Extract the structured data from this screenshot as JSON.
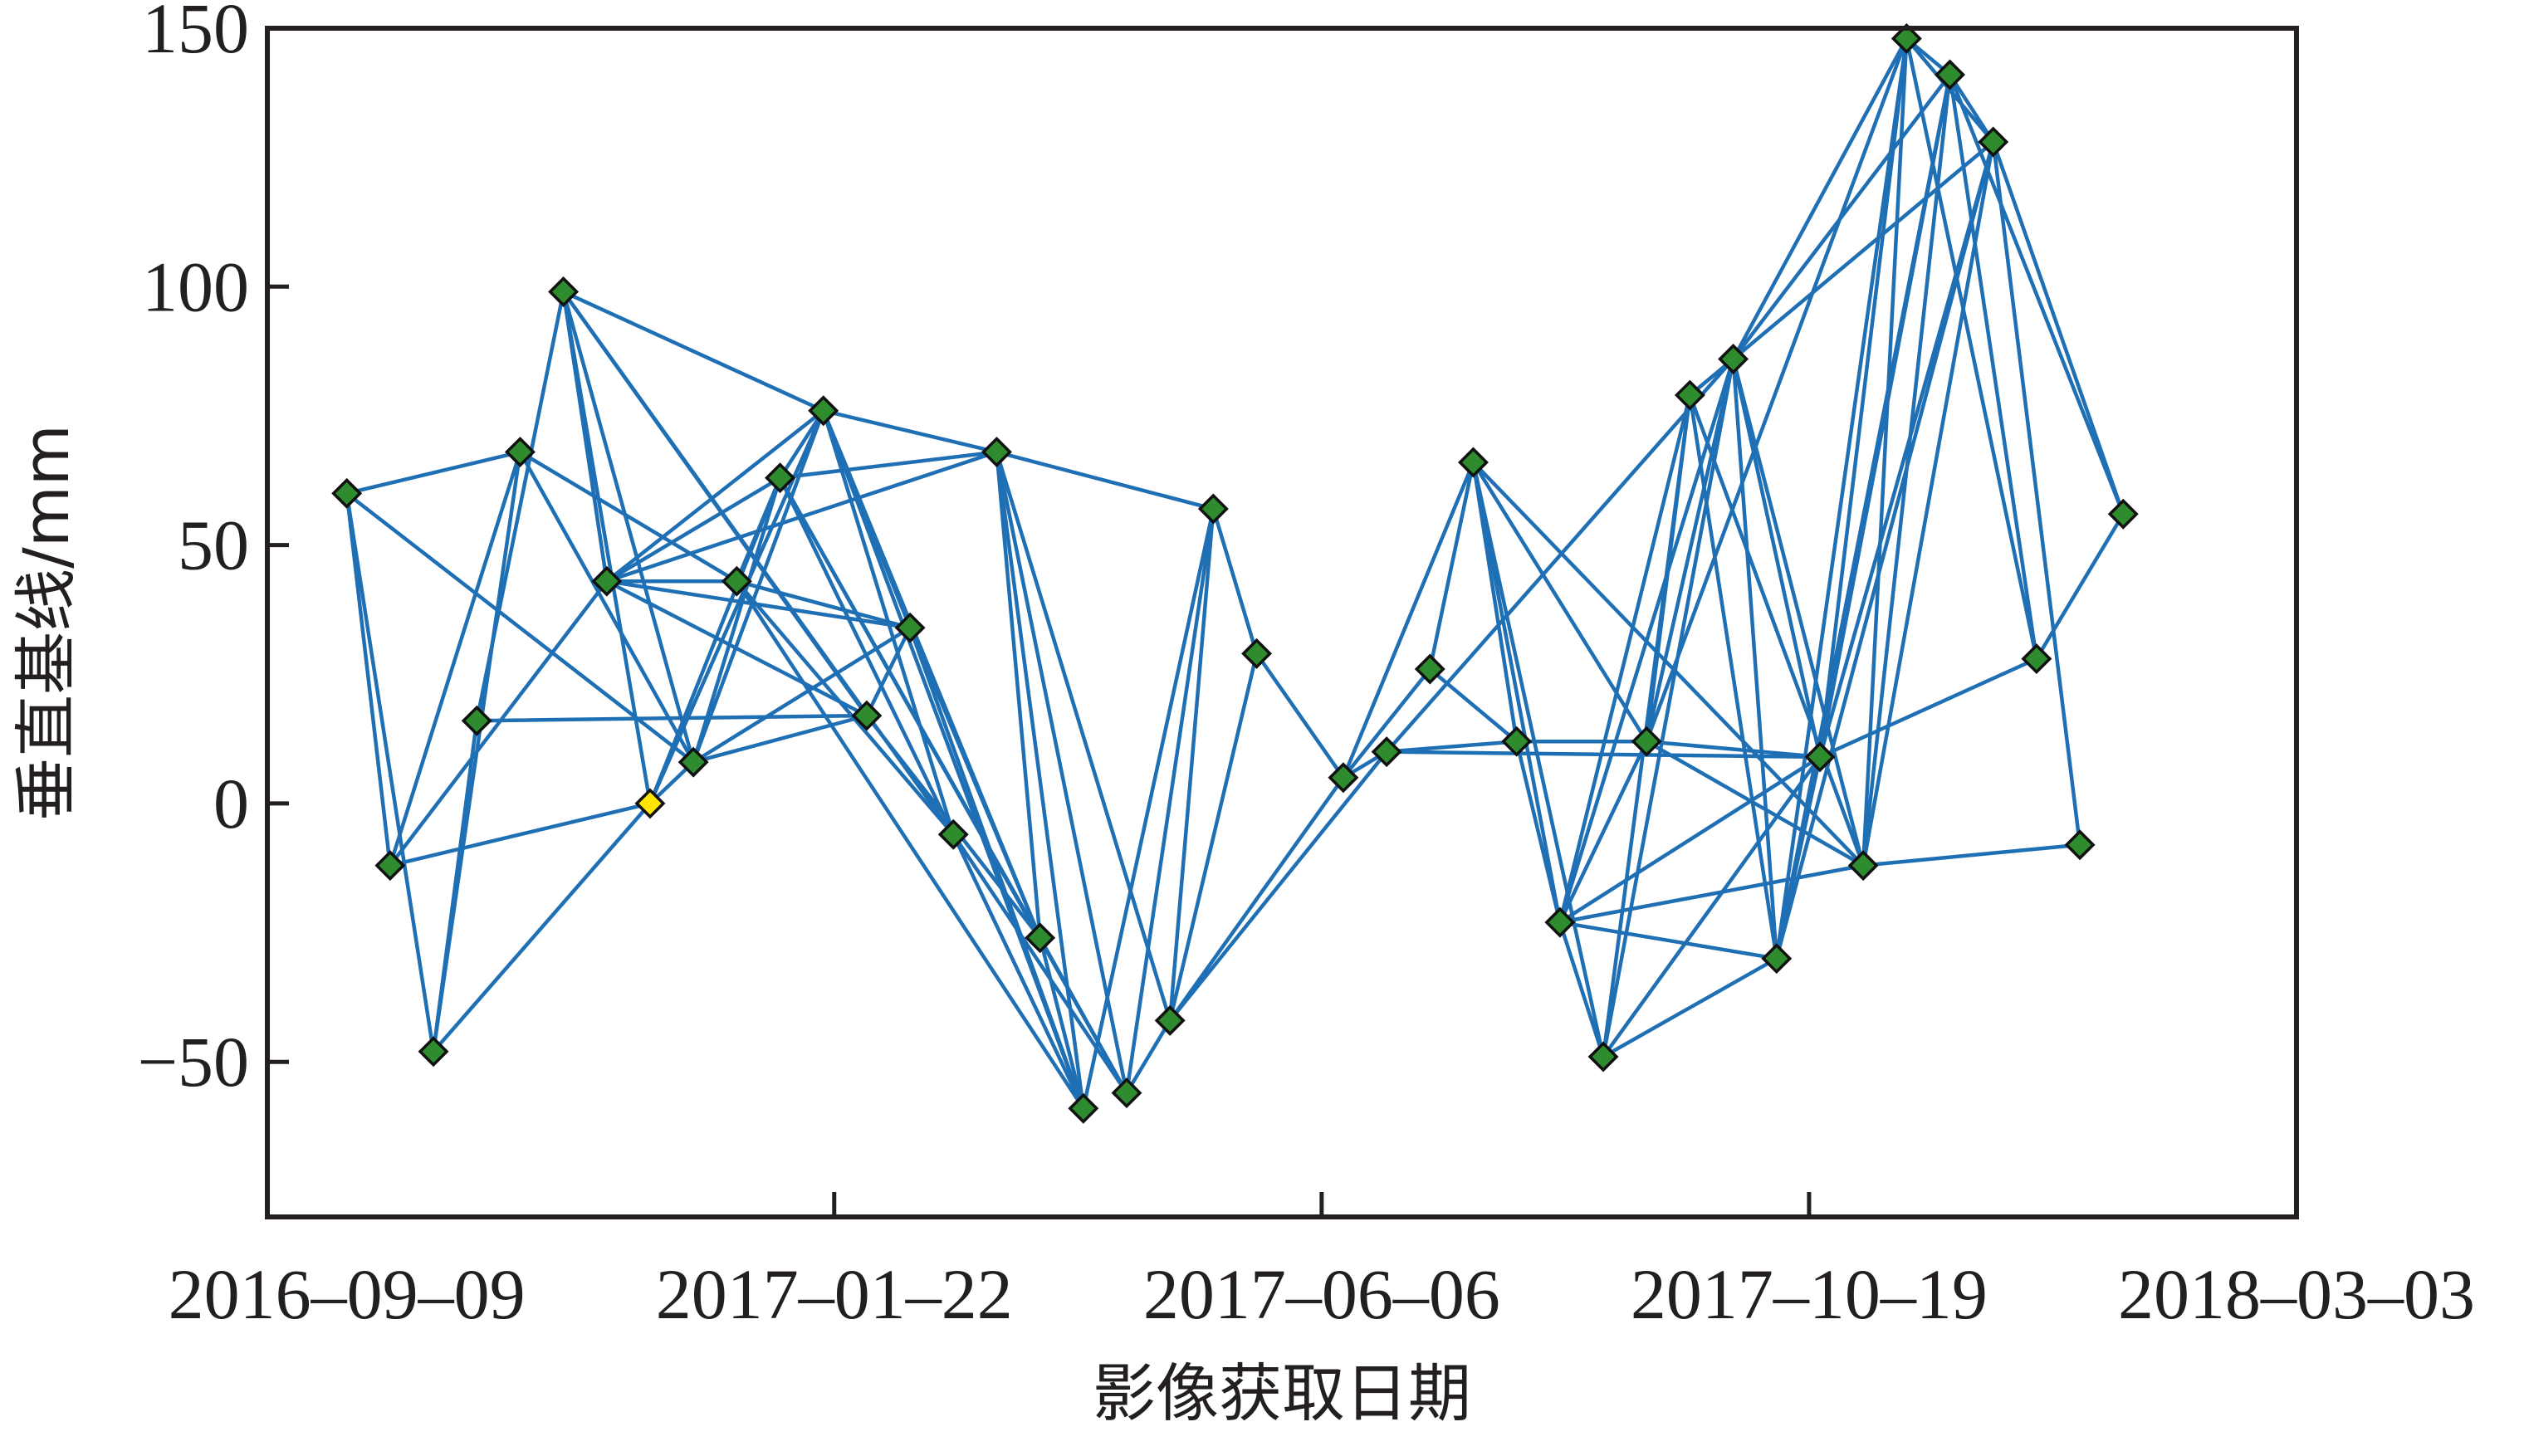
{
  "chart_data": {
    "type": "scatter",
    "subtype": "network",
    "xlabel": "影像获取日期",
    "ylabel": "垂直基线/mm",
    "xlim": [
      "2016-08-18",
      "2018-03-03"
    ],
    "ylim": [
      -80,
      150
    ],
    "x_ticks": [
      "2016-09-09",
      "2017-01-22",
      "2017-06-06",
      "2017-10-19",
      "2018-03-03"
    ],
    "y_ticks": [
      150,
      100,
      50,
      0,
      -50
    ],
    "grid": false,
    "legend": "none",
    "colors": {
      "edge": "#1f6fb5",
      "node": "#2e8b2e",
      "reference_node": "#ffe600",
      "node_outline": "#111111",
      "axes": "#231f20"
    },
    "points": [
      {
        "x": "2016-09-09",
        "y": 60
      },
      {
        "x": "2016-09-21",
        "y": -12
      },
      {
        "x": "2016-10-03",
        "y": -48
      },
      {
        "x": "2016-10-15",
        "y": 16
      },
      {
        "x": "2016-10-27",
        "y": 68
      },
      {
        "x": "2016-11-08",
        "y": 99
      },
      {
        "x": "2016-11-20",
        "y": 43
      },
      {
        "x": "2016-12-02",
        "y": 0,
        "reference": true
      },
      {
        "x": "2016-12-14",
        "y": 8
      },
      {
        "x": "2016-12-26",
        "y": 43
      },
      {
        "x": "2017-01-07",
        "y": 63
      },
      {
        "x": "2017-01-19",
        "y": 76
      },
      {
        "x": "2017-01-31",
        "y": 17
      },
      {
        "x": "2017-02-12",
        "y": 34
      },
      {
        "x": "2017-02-24",
        "y": -6
      },
      {
        "x": "2017-03-08",
        "y": 68
      },
      {
        "x": "2017-03-20",
        "y": -26
      },
      {
        "x": "2017-04-01",
        "y": -59
      },
      {
        "x": "2017-04-13",
        "y": -56
      },
      {
        "x": "2017-04-25",
        "y": -42
      },
      {
        "x": "2017-05-07",
        "y": 57
      },
      {
        "x": "2017-05-19",
        "y": 29
      },
      {
        "x": "2017-06-12",
        "y": 5
      },
      {
        "x": "2017-06-24",
        "y": 10
      },
      {
        "x": "2017-07-06",
        "y": 26
      },
      {
        "x": "2017-07-18",
        "y": 66
      },
      {
        "x": "2017-07-30",
        "y": 12
      },
      {
        "x": "2017-08-11",
        "y": -23
      },
      {
        "x": "2017-08-23",
        "y": -49
      },
      {
        "x": "2017-09-04",
        "y": 12
      },
      {
        "x": "2017-09-16",
        "y": 79
      },
      {
        "x": "2017-09-28",
        "y": 86
      },
      {
        "x": "2017-10-10",
        "y": -30
      },
      {
        "x": "2017-10-22",
        "y": 9
      },
      {
        "x": "2017-11-03",
        "y": -12
      },
      {
        "x": "2017-11-15",
        "y": 148
      },
      {
        "x": "2017-11-27",
        "y": 141
      },
      {
        "x": "2017-12-09",
        "y": 128
      },
      {
        "x": "2017-12-21",
        "y": 28
      },
      {
        "x": "2018-01-02",
        "y": -8
      },
      {
        "x": "2018-01-14",
        "y": 56
      }
    ],
    "edges": [
      [
        0,
        4
      ],
      [
        0,
        1
      ],
      [
        0,
        2
      ],
      [
        0,
        8
      ],
      [
        1,
        4
      ],
      [
        1,
        6
      ],
      [
        1,
        7
      ],
      [
        2,
        3
      ],
      [
        2,
        4
      ],
      [
        2,
        7
      ],
      [
        3,
        5
      ],
      [
        3,
        12
      ],
      [
        4,
        9
      ],
      [
        4,
        8
      ],
      [
        5,
        6
      ],
      [
        5,
        7
      ],
      [
        5,
        8
      ],
      [
        5,
        11
      ],
      [
        5,
        12
      ],
      [
        5,
        14
      ],
      [
        6,
        10
      ],
      [
        6,
        11
      ],
      [
        6,
        12
      ],
      [
        6,
        13
      ],
      [
        6,
        15
      ],
      [
        6,
        9
      ],
      [
        7,
        10
      ],
      [
        7,
        11
      ],
      [
        7,
        8
      ],
      [
        8,
        10
      ],
      [
        8,
        11
      ],
      [
        8,
        12
      ],
      [
        8,
        13
      ],
      [
        9,
        10
      ],
      [
        9,
        13
      ],
      [
        9,
        14
      ],
      [
        9,
        17
      ],
      [
        10,
        11
      ],
      [
        10,
        15
      ],
      [
        10,
        14
      ],
      [
        10,
        16
      ],
      [
        10,
        18
      ],
      [
        11,
        15
      ],
      [
        11,
        14
      ],
      [
        11,
        16
      ],
      [
        11,
        17
      ],
      [
        11,
        13
      ],
      [
        12,
        13
      ],
      [
        12,
        16
      ],
      [
        13,
        16
      ],
      [
        13,
        17
      ],
      [
        14,
        18
      ],
      [
        14,
        17
      ],
      [
        15,
        20
      ],
      [
        15,
        16
      ],
      [
        15,
        17
      ],
      [
        15,
        18
      ],
      [
        15,
        19
      ],
      [
        16,
        17
      ],
      [
        16,
        18
      ],
      [
        17,
        20
      ],
      [
        18,
        19
      ],
      [
        18,
        20
      ],
      [
        19,
        21
      ],
      [
        19,
        22
      ],
      [
        19,
        23
      ],
      [
        19,
        20
      ],
      [
        20,
        21
      ],
      [
        21,
        22
      ],
      [
        22,
        23
      ],
      [
        22,
        24
      ],
      [
        22,
        25
      ],
      [
        23,
        26
      ],
      [
        23,
        31
      ],
      [
        23,
        33
      ],
      [
        24,
        26
      ],
      [
        24,
        25
      ],
      [
        25,
        26
      ],
      [
        25,
        27
      ],
      [
        25,
        28
      ],
      [
        25,
        29
      ],
      [
        25,
        34
      ],
      [
        26,
        29
      ],
      [
        26,
        27
      ],
      [
        27,
        30
      ],
      [
        27,
        31
      ],
      [
        27,
        32
      ],
      [
        27,
        33
      ],
      [
        27,
        28
      ],
      [
        27,
        34
      ],
      [
        27,
        29
      ],
      [
        28,
        30
      ],
      [
        28,
        31
      ],
      [
        28,
        33
      ],
      [
        28,
        32
      ],
      [
        29,
        30
      ],
      [
        29,
        31
      ],
      [
        29,
        33
      ],
      [
        29,
        34
      ],
      [
        29,
        35
      ],
      [
        30,
        31
      ],
      [
        30,
        32
      ],
      [
        30,
        34
      ],
      [
        30,
        37
      ],
      [
        31,
        35
      ],
      [
        31,
        36
      ],
      [
        31,
        32
      ],
      [
        31,
        33
      ],
      [
        31,
        34
      ],
      [
        32,
        33
      ],
      [
        32,
        35
      ],
      [
        32,
        36
      ],
      [
        32,
        37
      ],
      [
        33,
        35
      ],
      [
        33,
        36
      ],
      [
        33,
        37
      ],
      [
        33,
        38
      ],
      [
        34,
        35
      ],
      [
        34,
        36
      ],
      [
        34,
        37
      ],
      [
        34,
        39
      ],
      [
        35,
        36
      ],
      [
        35,
        38
      ],
      [
        35,
        37
      ],
      [
        36,
        38
      ],
      [
        36,
        40
      ],
      [
        36,
        37
      ],
      [
        37,
        39
      ],
      [
        37,
        40
      ],
      [
        38,
        40
      ]
    ]
  }
}
